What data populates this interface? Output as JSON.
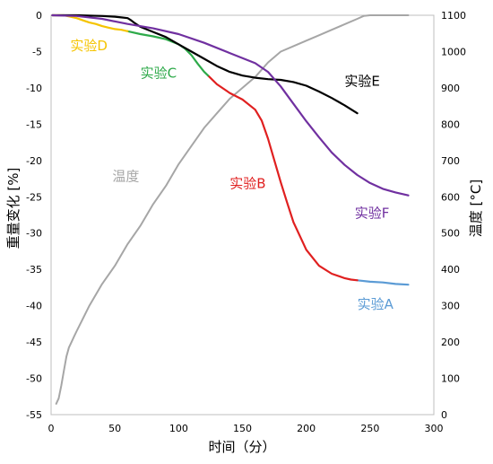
{
  "chart_data": {
    "type": "line",
    "xlabel": "时间（分）",
    "ylabel_left": "重量变化 [%]",
    "ylabel_right": "温度 [°C]",
    "xlim": [
      0,
      300
    ],
    "ylim_left": [
      -55,
      0
    ],
    "ylim_right": [
      0,
      1100
    ],
    "x_ticks": [
      0,
      50,
      100,
      150,
      200,
      250,
      300
    ],
    "y_left_ticks": [
      0,
      -5,
      -10,
      -15,
      -20,
      -25,
      -30,
      -35,
      -40,
      -45,
      -50,
      -55
    ],
    "y_right_ticks": [
      0,
      100,
      200,
      300,
      400,
      500,
      600,
      700,
      800,
      900,
      1000,
      1100
    ],
    "grid": false,
    "legend": "inline labels",
    "colors": {
      "temperature": "#a6a6a6",
      "A": "#5b9bd5",
      "B": "#e02020",
      "C": "#2eaa4a",
      "D": "#f5c400",
      "E": "#000000",
      "F": "#7030a0"
    },
    "series": [
      {
        "name": "温度",
        "axis": "right",
        "color": "#a6a6a6",
        "x": [
          4,
          6,
          8,
          10,
          12,
          14,
          16,
          18,
          20,
          25,
          30,
          40,
          50,
          60,
          70,
          80,
          90,
          100,
          110,
          120,
          130,
          140,
          150,
          160,
          170,
          180,
          190,
          200,
          210,
          220,
          230,
          240,
          245,
          250,
          260,
          270,
          280
        ],
        "values": [
          30,
          45,
          80,
          120,
          160,
          185,
          200,
          215,
          230,
          265,
          300,
          360,
          410,
          470,
          520,
          580,
          630,
          690,
          740,
          790,
          830,
          870,
          900,
          930,
          970,
          1000,
          1015,
          1030,
          1045,
          1060,
          1075,
          1090,
          1098,
          1100,
          1100,
          1100,
          1100
        ]
      },
      {
        "name": "实验A",
        "axis": "left",
        "color": "#5b9bd5",
        "x": [
          240,
          250,
          260,
          270,
          280
        ],
        "values": [
          -36.5,
          -36.7,
          -36.8,
          -37.0,
          -37.1
        ]
      },
      {
        "name": "实验B",
        "axis": "left",
        "color": "#e02020",
        "x": [
          123,
          130,
          140,
          150,
          160,
          165,
          170,
          175,
          180,
          185,
          190,
          200,
          210,
          220,
          230,
          235,
          240
        ],
        "values": [
          -8.3,
          -9.5,
          -10.7,
          -11.6,
          -13.0,
          -14.5,
          -17.0,
          -20.0,
          -23.0,
          -25.8,
          -28.5,
          -32.3,
          -34.5,
          -35.6,
          -36.2,
          -36.4,
          -36.5
        ]
      },
      {
        "name": "实验C",
        "axis": "left",
        "color": "#2eaa4a",
        "x": [
          60,
          70,
          80,
          90,
          100,
          105,
          110,
          115,
          120,
          123
        ],
        "values": [
          -2.2,
          -2.6,
          -2.9,
          -3.3,
          -4.0,
          -4.6,
          -5.5,
          -6.7,
          -7.8,
          -8.3
        ]
      },
      {
        "name": "实验D",
        "axis": "left",
        "color": "#f5c400",
        "x": [
          1,
          5,
          10,
          15,
          20,
          25,
          30,
          35,
          40,
          45,
          50,
          55,
          60
        ],
        "values": [
          0,
          0,
          0,
          -0.2,
          -0.4,
          -0.7,
          -1.0,
          -1.2,
          -1.5,
          -1.7,
          -1.9,
          -2.0,
          -2.2
        ]
      },
      {
        "name": "实验E",
        "axis": "left",
        "color": "#000000",
        "x": [
          1,
          20,
          40,
          50,
          55,
          60,
          62,
          65,
          70,
          80,
          90,
          100,
          110,
          120,
          130,
          140,
          150,
          160,
          170,
          180,
          190,
          200,
          210,
          220,
          230,
          240
        ],
        "values": [
          0,
          0,
          -0.1,
          -0.2,
          -0.3,
          -0.4,
          -0.6,
          -1.0,
          -1.6,
          -2.3,
          -3.0,
          -4.0,
          -5.0,
          -6.0,
          -7.0,
          -7.8,
          -8.3,
          -8.6,
          -8.8,
          -8.9,
          -9.2,
          -9.7,
          -10.5,
          -11.4,
          -12.4,
          -13.5
        ]
      },
      {
        "name": "实验F",
        "axis": "left",
        "color": "#7030a0",
        "x": [
          1,
          20,
          40,
          60,
          80,
          100,
          120,
          140,
          160,
          170,
          180,
          190,
          200,
          210,
          220,
          230,
          240,
          250,
          260,
          270,
          280
        ],
        "values": [
          0,
          -0.1,
          -0.5,
          -1.2,
          -1.8,
          -2.6,
          -3.8,
          -5.2,
          -6.6,
          -7.8,
          -9.8,
          -12.2,
          -14.6,
          -16.8,
          -18.9,
          -20.6,
          -22.0,
          -23.1,
          -23.9,
          -24.4,
          -24.8
        ]
      }
    ],
    "labels": [
      {
        "text": "实验A",
        "color": "#5b9bd5"
      },
      {
        "text": "实验B",
        "color": "#e02020"
      },
      {
        "text": "实验C",
        "color": "#2eaa4a"
      },
      {
        "text": "实验D",
        "color": "#f5c400"
      },
      {
        "text": "实验E",
        "color": "#000000"
      },
      {
        "text": "实验F",
        "color": "#7030a0"
      },
      {
        "text": "温度",
        "color": "#a6a6a6"
      }
    ]
  }
}
